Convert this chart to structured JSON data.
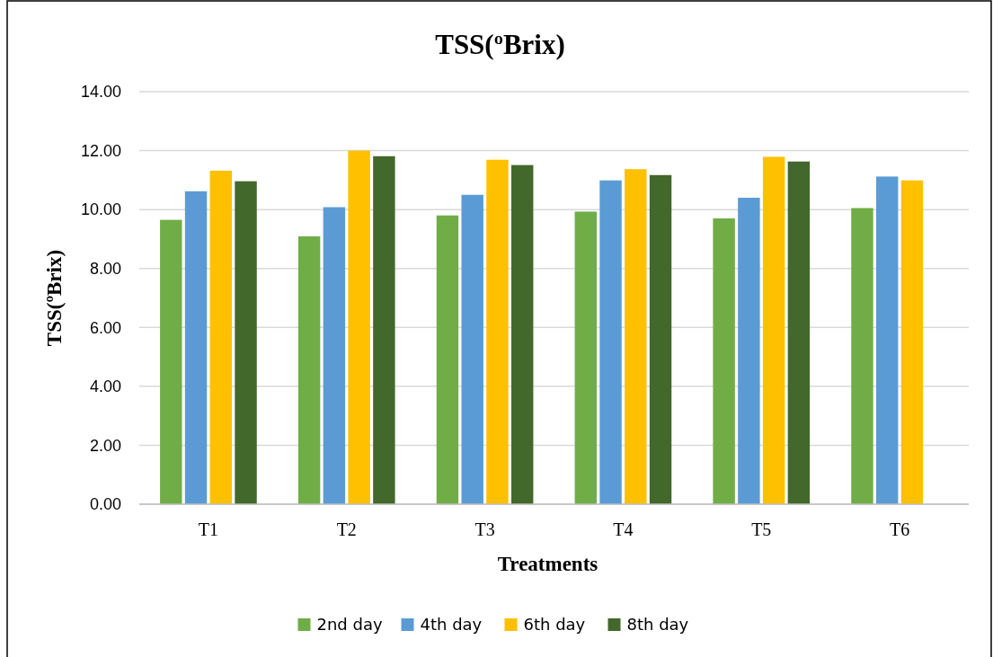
{
  "chart_data": {
    "type": "bar",
    "title": "TSS(ºBrix)",
    "xlabel": "Treatments",
    "ylabel": "TSS(ºBrix)",
    "categories": [
      "T1",
      "T2",
      "T3",
      "T4",
      "T5",
      "T6"
    ],
    "series": [
      {
        "name": "2nd day",
        "color": "#70ad47",
        "values": [
          9.65,
          9.09,
          9.8,
          9.93,
          9.7,
          10.05
        ]
      },
      {
        "name": "4th day",
        "color": "#5b9bd5",
        "values": [
          10.62,
          10.08,
          10.5,
          10.99,
          10.4,
          11.12
        ]
      },
      {
        "name": "6th day",
        "color": "#ffc000",
        "values": [
          11.32,
          12.0,
          11.69,
          11.37,
          11.79,
          10.99
        ]
      },
      {
        "name": "8th day",
        "color": "#43682b",
        "values": [
          10.96,
          11.81,
          11.51,
          11.17,
          11.63,
          null
        ]
      }
    ],
    "ylim": [
      0,
      14
    ],
    "yticks": [
      {
        "value": 0,
        "label": "0.00"
      },
      {
        "value": 2,
        "label": "2.00"
      },
      {
        "value": 4,
        "label": "4.00"
      },
      {
        "value": 6,
        "label": "6.00"
      },
      {
        "value": 8,
        "label": "8.00"
      },
      {
        "value": 10,
        "label": "10.00"
      },
      {
        "value": 12,
        "label": "12.00"
      },
      {
        "value": 14,
        "label": "14.00"
      }
    ],
    "grid": "y",
    "legend": "bottom"
  }
}
